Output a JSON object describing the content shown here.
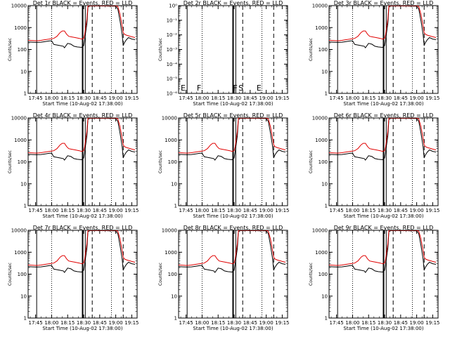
{
  "chart_data": {
    "type": "line",
    "layout": {
      "rows": 3,
      "cols": 3
    },
    "shared": {
      "xlabel": "Start Time (10-Aug-02 17:38:00)",
      "ylabel": "Counts/sec",
      "x_tick_labels": [
        "17:45",
        "18:00",
        "18:15",
        "18:30",
        "18:45",
        "19:00",
        "19:15"
      ],
      "x_tick_minutes": [
        7,
        22,
        37,
        52,
        67,
        82,
        97
      ],
      "xlim_minutes": [
        0,
        102
      ],
      "y_scale": "log",
      "ylim": [
        1,
        10000
      ],
      "y_tick_labels": [
        "1",
        "10",
        "100",
        "1000",
        "10000"
      ],
      "grid": false,
      "legend": "none",
      "series_colors": {
        "events": "#000000",
        "lld": "#e00000"
      },
      "time_unit": "minutes after 17:38:00",
      "vertical_markers": [
        {
          "t": 8,
          "style": "solid"
        },
        {
          "t": 22,
          "style": "dotted"
        },
        {
          "t": 51,
          "style": "solid-thick"
        },
        {
          "t": 53.5,
          "style": "solid"
        },
        {
          "t": 60,
          "style": "dashed"
        },
        {
          "t": 78,
          "style": "dotted"
        },
        {
          "t": 89,
          "style": "dashed"
        }
      ],
      "event_series": {
        "name": "Events",
        "x": [
          0,
          4,
          8,
          12,
          16,
          20,
          22,
          24,
          27,
          30,
          33,
          34,
          37,
          40,
          43,
          46,
          50,
          52,
          53,
          55,
          56,
          57,
          58,
          60,
          62,
          64,
          66,
          68,
          70,
          72,
          74,
          76,
          78,
          79,
          80,
          81,
          82,
          84,
          86,
          88,
          89,
          90,
          92,
          94,
          97,
          100
        ],
        "y": [
          220,
          215,
          210,
          215,
          230,
          245,
          250,
          170,
          160,
          150,
          140,
          120,
          190,
          175,
          140,
          130,
          125,
          150,
          300,
          1500,
          9000,
          9500,
          9600,
          9700,
          9600,
          9700,
          9600,
          9700,
          9600,
          9700,
          9600,
          9500,
          9400,
          9500,
          9600,
          9500,
          9300,
          7000,
          2000,
          500,
          150,
          200,
          280,
          350,
          300,
          280
        ]
      },
      "lld_series": {
        "name": "LLD",
        "x": [
          0,
          4,
          8,
          12,
          16,
          20,
          24,
          27,
          30,
          32,
          34,
          36,
          38,
          40,
          44,
          48,
          50,
          52,
          53,
          55,
          56,
          57,
          58,
          60,
          62,
          64,
          66,
          68,
          70,
          72,
          74,
          76,
          78,
          80,
          82,
          84,
          86,
          88,
          89,
          90,
          92,
          94,
          97,
          100
        ],
        "y": [
          260,
          255,
          250,
          260,
          280,
          300,
          320,
          400,
          600,
          700,
          700,
          500,
          400,
          380,
          350,
          320,
          300,
          320,
          500,
          2500,
          9800,
          10000,
          10000,
          10000,
          10000,
          10000,
          10000,
          10000,
          10000,
          10000,
          10000,
          10000,
          10000,
          10000,
          10000,
          9000,
          4000,
          1200,
          600,
          500,
          450,
          420,
          380,
          350
        ]
      }
    },
    "panels": [
      {
        "title": "Det 1r BLACK = Events, RED = LLD",
        "has_data": true
      },
      {
        "title": "Det 2r BLACK = Events, RED = LLD",
        "has_data": false,
        "ylim": [
          1,
          1e-06
        ],
        "y_tick_labels": [
          "10⁻⁶",
          "10⁻⁵",
          "10⁻⁴",
          "10⁻³",
          "10⁻²",
          "10⁻¹",
          "10⁰"
        ],
        "annotations": [
          {
            "text": "E",
            "t": 2
          },
          {
            "text": "F",
            "t": 17
          },
          {
            "text": "F",
            "t": 51
          },
          {
            "text": "S",
            "t": 56
          },
          {
            "text": "E",
            "t": 73
          }
        ]
      },
      {
        "title": "Det 3r BLACK = Events, RED = LLD",
        "has_data": true
      },
      {
        "title": "Det 4r BLACK = Events, RED = LLD",
        "has_data": true
      },
      {
        "title": "Det 5r BLACK = Events, RED = LLD",
        "has_data": true
      },
      {
        "title": "Det 6r BLACK = Events, RED = LLD",
        "has_data": true
      },
      {
        "title": "Det 7r BLACK = Events, RED = LLD",
        "has_data": true
      },
      {
        "title": "Det 8r BLACK = Events, RED = LLD",
        "has_data": true
      },
      {
        "title": "Det 9r BLACK = Events, RED = LLD",
        "has_data": true
      }
    ]
  }
}
